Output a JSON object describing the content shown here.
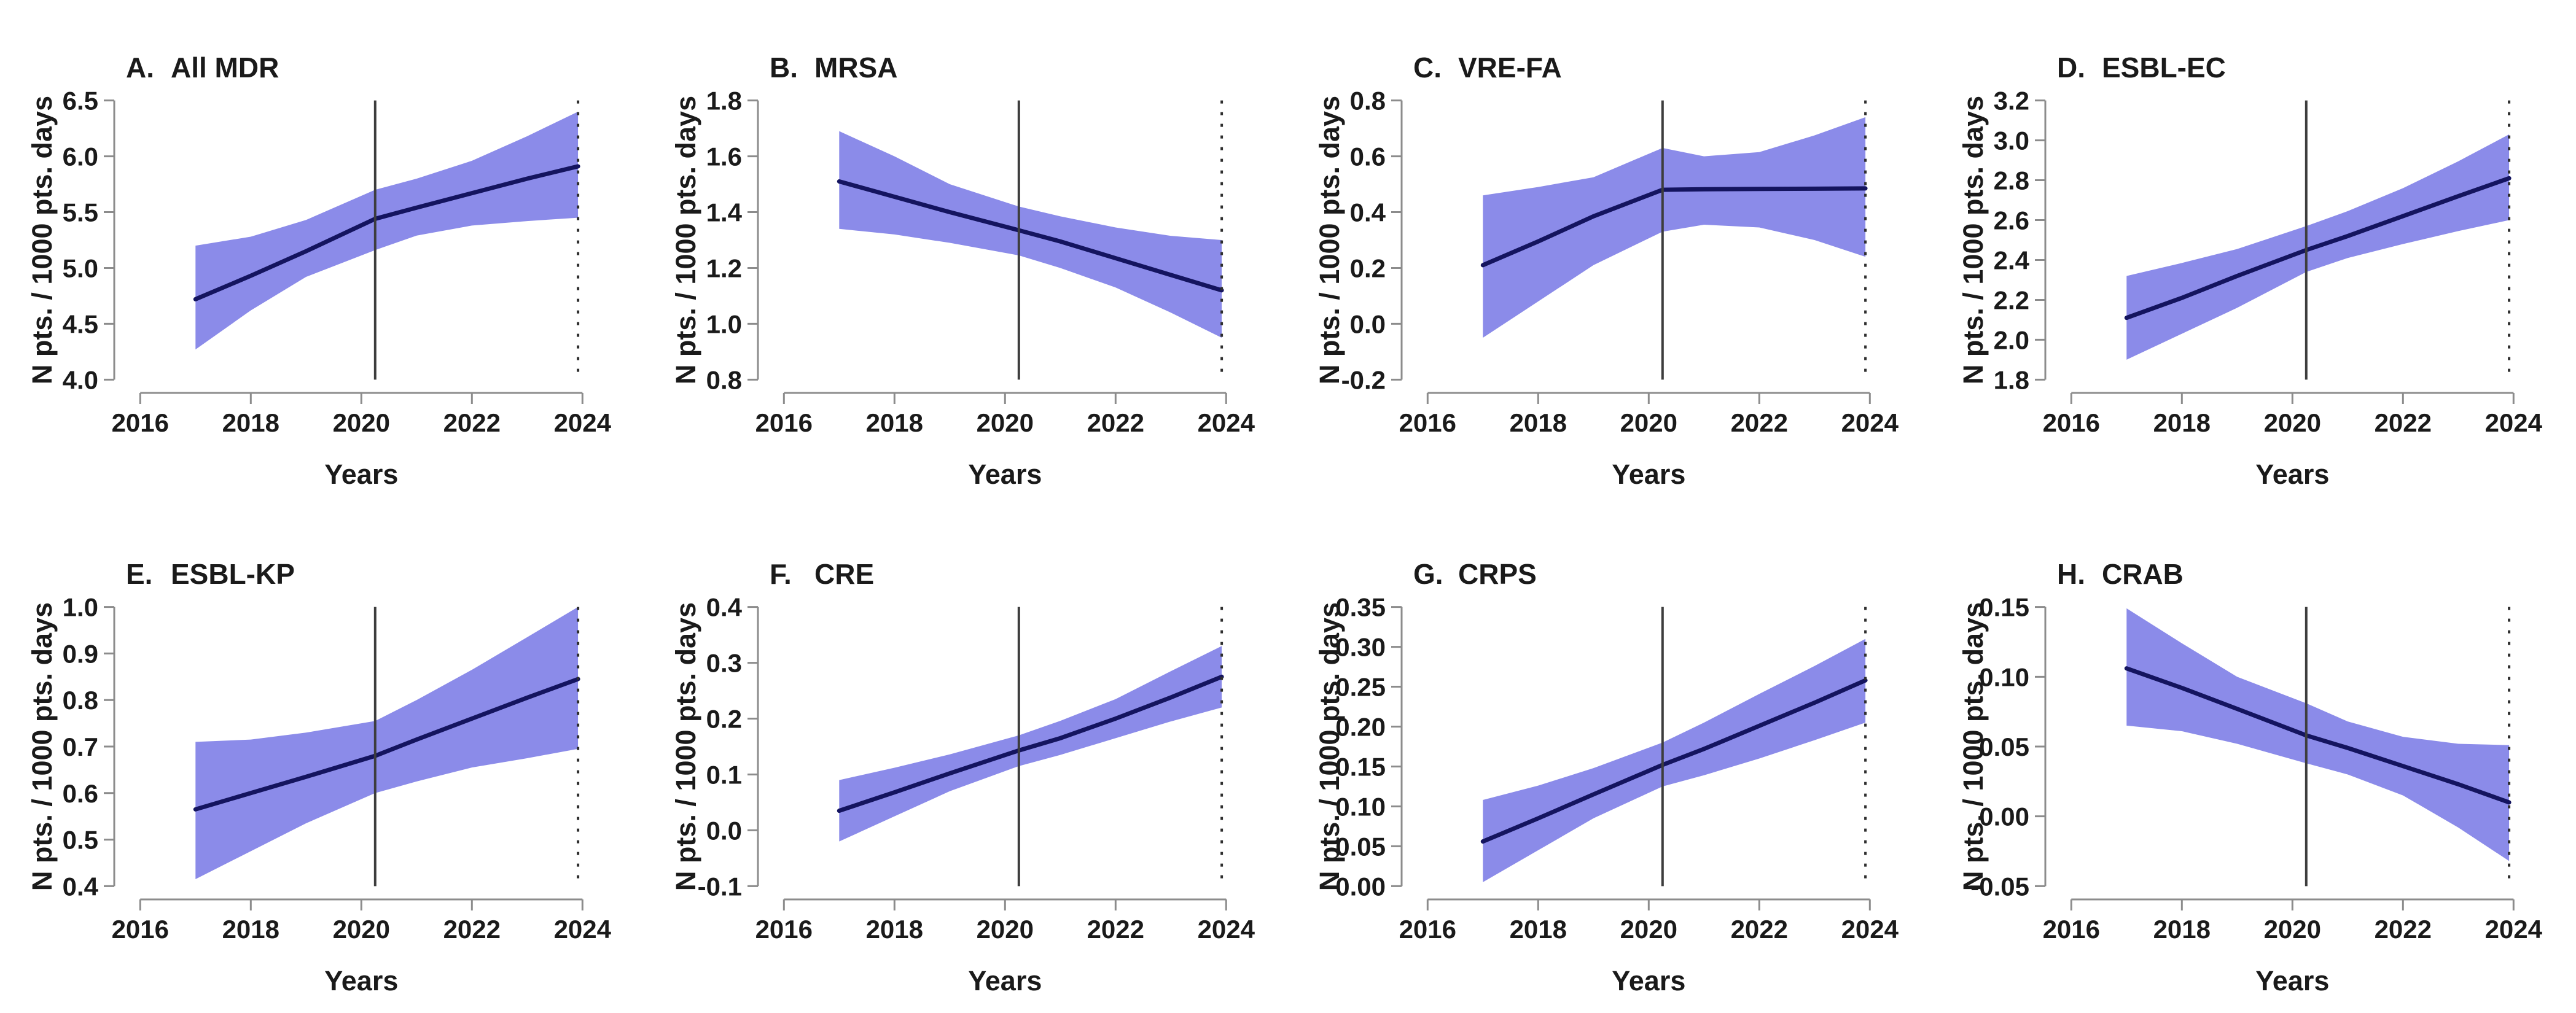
{
  "figure": {
    "background": "#ffffff",
    "rows": 2,
    "cols": 4
  },
  "colors": {
    "band": "#8b8be9",
    "trend_line": "#14145f",
    "axis": "#8c8c8c",
    "text": "#1a1a1a",
    "vline_solid": "#3d3d3d",
    "vline_dashed": "#2e2e2e"
  },
  "chart_data": [
    {
      "type": "area",
      "panel_label": "A.",
      "title": "All MDR",
      "xlabel": "Years",
      "ylabel": "N pts. / 1000 pts. days",
      "xticks": [
        "2016",
        "2018",
        "2020",
        "2022",
        "2024"
      ],
      "xlim": [
        2015.93,
        2024.03
      ],
      "yticks": [
        "4.0",
        "4.5",
        "5.0",
        "5.5",
        "6.0",
        "6.5"
      ],
      "ylim": [
        3.925,
        6.575
      ],
      "vline_solid_x": 2020.25,
      "vline_dashed_x": 2023.92,
      "grid": false,
      "x": [
        2017,
        2018,
        2019,
        2020.25,
        2021,
        2022,
        2023,
        2023.92
      ],
      "line": [
        4.72,
        4.93,
        5.15,
        5.44,
        5.54,
        5.67,
        5.8,
        5.91
      ],
      "band_lower": [
        4.27,
        4.62,
        4.92,
        5.16,
        5.29,
        5.38,
        5.42,
        5.45
      ],
      "band_upper": [
        5.2,
        5.28,
        5.43,
        5.7,
        5.8,
        5.96,
        6.18,
        6.4
      ]
    },
    {
      "type": "area",
      "panel_label": "B.",
      "title": "MRSA",
      "xlabel": "Years",
      "ylabel": "N pts. / 1000 pts. days",
      "xticks": [
        "2016",
        "2018",
        "2020",
        "2022",
        "2024"
      ],
      "xlim": [
        2015.93,
        2024.03
      ],
      "yticks": [
        "0.8",
        "1.0",
        "1.2",
        "1.4",
        "1.6",
        "1.8"
      ],
      "ylim": [
        0.77,
        1.83
      ],
      "vline_solid_x": 2020.25,
      "vline_dashed_x": 2023.92,
      "grid": false,
      "x": [
        2017,
        2018,
        2019,
        2020.25,
        2021,
        2022,
        2023,
        2023.92
      ],
      "line": [
        1.51,
        1.455,
        1.4,
        1.335,
        1.295,
        1.235,
        1.175,
        1.12
      ],
      "band_lower": [
        1.34,
        1.32,
        1.29,
        1.245,
        1.2,
        1.13,
        1.04,
        0.95
      ],
      "band_upper": [
        1.69,
        1.6,
        1.5,
        1.42,
        1.385,
        1.345,
        1.315,
        1.3
      ]
    },
    {
      "type": "area",
      "panel_label": "C.",
      "title": "VRE-FA",
      "xlabel": "Years",
      "ylabel": "N pts. / 1000 pts. days",
      "xticks": [
        "2016",
        "2018",
        "2020",
        "2022",
        "2024"
      ],
      "xlim": [
        2015.93,
        2024.03
      ],
      "yticks": [
        "-0.2",
        "0.0",
        "0.2",
        "0.4",
        "0.6",
        "0.8"
      ],
      "ylim": [
        -0.23,
        0.83
      ],
      "vline_solid_x": 2020.25,
      "vline_dashed_x": 2023.92,
      "grid": false,
      "x": [
        2017,
        2018,
        2019,
        2020.25,
        2021,
        2022,
        2023,
        2023.92
      ],
      "line": [
        0.21,
        0.295,
        0.385,
        0.48,
        0.482,
        0.483,
        0.484,
        0.485
      ],
      "band_lower": [
        -0.05,
        0.08,
        0.21,
        0.33,
        0.355,
        0.345,
        0.3,
        0.24
      ],
      "band_upper": [
        0.46,
        0.49,
        0.525,
        0.63,
        0.6,
        0.615,
        0.675,
        0.74
      ]
    },
    {
      "type": "area",
      "panel_label": "D.",
      "title": "ESBL-EC",
      "xlabel": "Years",
      "ylabel": "N pts. / 1000 pts. days",
      "xticks": [
        "2016",
        "2018",
        "2020",
        "2022",
        "2024"
      ],
      "xlim": [
        2015.93,
        2024.03
      ],
      "yticks": [
        "1.8",
        "2.0",
        "2.2",
        "2.4",
        "2.6",
        "2.8",
        "3.0",
        "3.2"
      ],
      "ylim": [
        1.758,
        3.242
      ],
      "vline_solid_x": 2020.25,
      "vline_dashed_x": 2023.92,
      "grid": false,
      "x": [
        2017,
        2018,
        2019,
        2020.25,
        2021,
        2022,
        2023,
        2023.92
      ],
      "line": [
        2.11,
        2.21,
        2.32,
        2.45,
        2.52,
        2.62,
        2.72,
        2.81
      ],
      "band_lower": [
        1.9,
        2.03,
        2.16,
        2.34,
        2.41,
        2.48,
        2.545,
        2.6
      ],
      "band_upper": [
        2.32,
        2.385,
        2.455,
        2.57,
        2.645,
        2.76,
        2.895,
        3.03
      ]
    },
    {
      "type": "area",
      "panel_label": "E.",
      "title": "ESBL-KP",
      "xlabel": "Years",
      "ylabel": "N pts. / 1000 pts. days",
      "xticks": [
        "2016",
        "2018",
        "2020",
        "2022",
        "2024"
      ],
      "xlim": [
        2015.93,
        2024.03
      ],
      "yticks": [
        "0.4",
        "0.5",
        "0.6",
        "0.7",
        "0.8",
        "0.9",
        "1.0"
      ],
      "ylim": [
        0.382,
        1.018
      ],
      "vline_solid_x": 2020.25,
      "vline_dashed_x": 2023.92,
      "grid": false,
      "x": [
        2017,
        2018,
        2019,
        2020.25,
        2021,
        2022,
        2023,
        2023.92
      ],
      "line": [
        0.565,
        0.6,
        0.635,
        0.68,
        0.715,
        0.76,
        0.805,
        0.845
      ],
      "band_lower": [
        0.415,
        0.475,
        0.535,
        0.6,
        0.625,
        0.655,
        0.675,
        0.695
      ],
      "band_upper": [
        0.71,
        0.715,
        0.73,
        0.755,
        0.8,
        0.865,
        0.935,
        1.0
      ]
    },
    {
      "type": "area",
      "panel_label": "F.",
      "title": "CRE",
      "xlabel": "Years",
      "ylabel": "N pts. / 1000 pts. days",
      "xticks": [
        "2016",
        "2018",
        "2020",
        "2022",
        "2024"
      ],
      "xlim": [
        2015.93,
        2024.03
      ],
      "yticks": [
        "-0.1",
        "0.0",
        "0.1",
        "0.2",
        "0.3",
        "0.4"
      ],
      "ylim": [
        -0.115,
        0.415
      ],
      "vline_solid_x": 2020.25,
      "vline_dashed_x": 2023.92,
      "grid": false,
      "x": [
        2017,
        2018,
        2019,
        2020.25,
        2021,
        2022,
        2023,
        2023.92
      ],
      "line": [
        0.035,
        0.068,
        0.102,
        0.143,
        0.165,
        0.2,
        0.238,
        0.275
      ],
      "band_lower": [
        -0.02,
        0.025,
        0.07,
        0.115,
        0.135,
        0.165,
        0.195,
        0.22
      ],
      "band_upper": [
        0.09,
        0.112,
        0.136,
        0.17,
        0.196,
        0.235,
        0.285,
        0.33
      ]
    },
    {
      "type": "area",
      "panel_label": "G.",
      "title": "CRPS",
      "xlabel": "Years",
      "ylabel": "N pts. / 1000 pts. days",
      "xticks": [
        "2016",
        "2018",
        "2020",
        "2022",
        "2024"
      ],
      "xlim": [
        2015.93,
        2024.03
      ],
      "yticks": [
        "0.00",
        "0.05",
        "0.10",
        "0.15",
        "0.20",
        "0.25",
        "0.30",
        "0.35"
      ],
      "ylim": [
        -0.0105,
        0.3605
      ],
      "vline_solid_x": 2020.25,
      "vline_dashed_x": 2023.92,
      "grid": false,
      "x": [
        2017,
        2018,
        2019,
        2020.25,
        2021,
        2022,
        2023,
        2023.92
      ],
      "line": [
        0.056,
        0.085,
        0.115,
        0.152,
        0.172,
        0.201,
        0.23,
        0.258
      ],
      "band_lower": [
        0.005,
        0.045,
        0.085,
        0.125,
        0.139,
        0.16,
        0.183,
        0.205
      ],
      "band_upper": [
        0.108,
        0.126,
        0.148,
        0.18,
        0.205,
        0.241,
        0.276,
        0.31
      ]
    },
    {
      "type": "area",
      "panel_label": "H.",
      "title": "CRAB",
      "xlabel": "Years",
      "ylabel": "N pts. / 1000 pts. days",
      "xticks": [
        "2016",
        "2018",
        "2020",
        "2022",
        "2024"
      ],
      "xlim": [
        2015.93,
        2024.03
      ],
      "yticks": [
        "-0.05",
        "0.00",
        "0.05",
        "0.10",
        "0.15"
      ],
      "ylim": [
        -0.056,
        0.156
      ],
      "vline_solid_x": 2020.25,
      "vline_dashed_x": 2023.92,
      "grid": false,
      "x": [
        2017,
        2018,
        2019,
        2020.25,
        2021,
        2022,
        2023,
        2023.92
      ],
      "line": [
        0.106,
        0.092,
        0.077,
        0.058,
        0.049,
        0.036,
        0.023,
        0.01
      ],
      "band_lower": [
        0.065,
        0.061,
        0.052,
        0.038,
        0.03,
        0.015,
        -0.008,
        -0.032
      ],
      "band_upper": [
        0.149,
        0.124,
        0.1,
        0.081,
        0.068,
        0.057,
        0.052,
        0.051
      ]
    }
  ]
}
